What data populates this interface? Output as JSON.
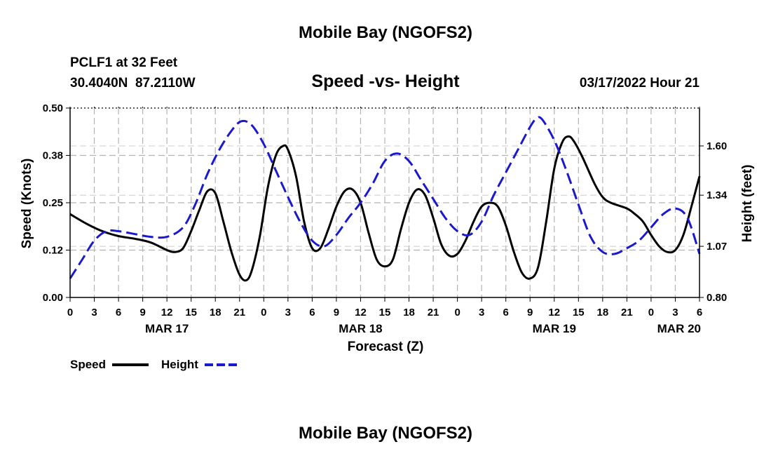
{
  "chart_data": {
    "type": "line",
    "title": "Mobile Bay (NGOFS2)",
    "station": "PCLF1 at 32 Feet",
    "coordinates": "30.4040N  87.2110W",
    "subtitle": "Speed -vs- Height",
    "timestamp": "03/17/2022 Hour 21",
    "footer_title": "Mobile Bay (NGOFS2)",
    "xlabel": "Forecast (Z)",
    "ylabel_left": "Speed (Knots)",
    "ylabel_right": "Height (feet)",
    "x_unit": "hours from 03/17 00Z",
    "xlim": [
      0,
      78
    ],
    "ylim_left": [
      0,
      0.5
    ],
    "ylim_right": [
      0.8,
      1.8
    ],
    "x_ticks": [
      {
        "x": 0,
        "label": "0"
      },
      {
        "x": 3,
        "label": "3"
      },
      {
        "x": 6,
        "label": "6"
      },
      {
        "x": 9,
        "label": "9"
      },
      {
        "x": 12,
        "label": "12"
      },
      {
        "x": 15,
        "label": "15"
      },
      {
        "x": 18,
        "label": "18"
      },
      {
        "x": 21,
        "label": "21"
      },
      {
        "x": 24,
        "label": "0"
      },
      {
        "x": 27,
        "label": "3"
      },
      {
        "x": 30,
        "label": "6"
      },
      {
        "x": 33,
        "label": "9"
      },
      {
        "x": 36,
        "label": "12"
      },
      {
        "x": 39,
        "label": "15"
      },
      {
        "x": 42,
        "label": "18"
      },
      {
        "x": 45,
        "label": "21"
      },
      {
        "x": 48,
        "label": "0"
      },
      {
        "x": 51,
        "label": "3"
      },
      {
        "x": 54,
        "label": "6"
      },
      {
        "x": 57,
        "label": "9"
      },
      {
        "x": 60,
        "label": "12"
      },
      {
        "x": 63,
        "label": "15"
      },
      {
        "x": 66,
        "label": "18"
      },
      {
        "x": 69,
        "label": "21"
      },
      {
        "x": 72,
        "label": "0"
      },
      {
        "x": 75,
        "label": "3"
      },
      {
        "x": 78,
        "label": "6"
      }
    ],
    "date_labels": [
      {
        "x": 12,
        "label": "MAR 17"
      },
      {
        "x": 36,
        "label": "MAR 18"
      },
      {
        "x": 60,
        "label": "MAR 19"
      },
      {
        "x": 78,
        "label": "MAR 20"
      }
    ],
    "y_ticks_left": [
      {
        "value": 0.0,
        "label": "0.00"
      },
      {
        "value": 0.125,
        "label": "0.12"
      },
      {
        "value": 0.25,
        "label": "0.25"
      },
      {
        "value": 0.375,
        "label": "0.38"
      },
      {
        "value": 0.5,
        "label": "0.50"
      }
    ],
    "y_ticks_right": [
      {
        "value": 0.8,
        "label": "0.80"
      },
      {
        "value": 1.07,
        "label": "1.07"
      },
      {
        "value": 1.34,
        "label": "1.34"
      },
      {
        "value": 1.6,
        "label": "1.60"
      }
    ],
    "series": [
      {
        "name": "Speed",
        "axis": "left",
        "color": "#000000",
        "dash": "solid",
        "points": [
          [
            0,
            0.22
          ],
          [
            2,
            0.195
          ],
          [
            4,
            0.175
          ],
          [
            6,
            0.162
          ],
          [
            8,
            0.155
          ],
          [
            10,
            0.145
          ],
          [
            12,
            0.125
          ],
          [
            13,
            0.12
          ],
          [
            14,
            0.13
          ],
          [
            15,
            0.175
          ],
          [
            16,
            0.23
          ],
          [
            17,
            0.28
          ],
          [
            18,
            0.275
          ],
          [
            19,
            0.2
          ],
          [
            20,
            0.12
          ],
          [
            21,
            0.06
          ],
          [
            21.8,
            0.045
          ],
          [
            22.5,
            0.07
          ],
          [
            23.5,
            0.16
          ],
          [
            24.5,
            0.29
          ],
          [
            25.5,
            0.375
          ],
          [
            26.4,
            0.4
          ],
          [
            27,
            0.39
          ],
          [
            28,
            0.32
          ],
          [
            29,
            0.2
          ],
          [
            30,
            0.13
          ],
          [
            31,
            0.13
          ],
          [
            32,
            0.18
          ],
          [
            33,
            0.24
          ],
          [
            34,
            0.28
          ],
          [
            35,
            0.285
          ],
          [
            36,
            0.25
          ],
          [
            37,
            0.17
          ],
          [
            38,
            0.1
          ],
          [
            39,
            0.082
          ],
          [
            40,
            0.1
          ],
          [
            41,
            0.18
          ],
          [
            42,
            0.25
          ],
          [
            43,
            0.285
          ],
          [
            44,
            0.27
          ],
          [
            45,
            0.21
          ],
          [
            46,
            0.14
          ],
          [
            47,
            0.11
          ],
          [
            48,
            0.115
          ],
          [
            49,
            0.15
          ],
          [
            50,
            0.2
          ],
          [
            51,
            0.24
          ],
          [
            52,
            0.25
          ],
          [
            53,
            0.24
          ],
          [
            54,
            0.19
          ],
          [
            55,
            0.12
          ],
          [
            56,
            0.065
          ],
          [
            57,
            0.05
          ],
          [
            58,
            0.08
          ],
          [
            59,
            0.2
          ],
          [
            60,
            0.34
          ],
          [
            61,
            0.41
          ],
          [
            61.8,
            0.425
          ],
          [
            62.5,
            0.41
          ],
          [
            63.5,
            0.37
          ],
          [
            65,
            0.3
          ],
          [
            66,
            0.265
          ],
          [
            67,
            0.25
          ],
          [
            69,
            0.235
          ],
          [
            70,
            0.22
          ],
          [
            71,
            0.2
          ],
          [
            72,
            0.165
          ],
          [
            73,
            0.135
          ],
          [
            74,
            0.12
          ],
          [
            75,
            0.125
          ],
          [
            76,
            0.165
          ],
          [
            77,
            0.24
          ],
          [
            78,
            0.32
          ]
        ]
      },
      {
        "name": "Height",
        "axis": "right",
        "color": "#1a1acc",
        "dash": "dashed",
        "points": [
          [
            0,
            0.9
          ],
          [
            1.5,
            1.0
          ],
          [
            3,
            1.1
          ],
          [
            4.5,
            1.15
          ],
          [
            6,
            1.15
          ],
          [
            8,
            1.135
          ],
          [
            10,
            1.12
          ],
          [
            12,
            1.12
          ],
          [
            14,
            1.17
          ],
          [
            15.5,
            1.29
          ],
          [
            17,
            1.45
          ],
          [
            18.5,
            1.58
          ],
          [
            20,
            1.68
          ],
          [
            21.2,
            1.73
          ],
          [
            22.5,
            1.71
          ],
          [
            24,
            1.61
          ],
          [
            25.5,
            1.47
          ],
          [
            27,
            1.33
          ],
          [
            28.5,
            1.2
          ],
          [
            30,
            1.1
          ],
          [
            31.5,
            1.07
          ],
          [
            33,
            1.13
          ],
          [
            34.5,
            1.22
          ],
          [
            36,
            1.3
          ],
          [
            37.5,
            1.4
          ],
          [
            39,
            1.52
          ],
          [
            40.5,
            1.56
          ],
          [
            42,
            1.52
          ],
          [
            43.5,
            1.42
          ],
          [
            45,
            1.32
          ],
          [
            46.5,
            1.22
          ],
          [
            48,
            1.15
          ],
          [
            49.5,
            1.13
          ],
          [
            51,
            1.2
          ],
          [
            52.5,
            1.34
          ],
          [
            54,
            1.46
          ],
          [
            55.5,
            1.58
          ],
          [
            57,
            1.7
          ],
          [
            57.8,
            1.745
          ],
          [
            58.5,
            1.74
          ],
          [
            60,
            1.63
          ],
          [
            61.5,
            1.47
          ],
          [
            63,
            1.29
          ],
          [
            64.5,
            1.12
          ],
          [
            66,
            1.04
          ],
          [
            67.5,
            1.03
          ],
          [
            69,
            1.06
          ],
          [
            70.5,
            1.1
          ],
          [
            72,
            1.17
          ],
          [
            73.5,
            1.24
          ],
          [
            75,
            1.27
          ],
          [
            76.5,
            1.22
          ],
          [
            78,
            1.03
          ]
        ]
      }
    ],
    "legend": [
      {
        "label": "Speed",
        "color": "#000000",
        "dash": "solid"
      },
      {
        "label": "Height",
        "color": "#1a1acc",
        "dash": "dashed"
      }
    ]
  }
}
